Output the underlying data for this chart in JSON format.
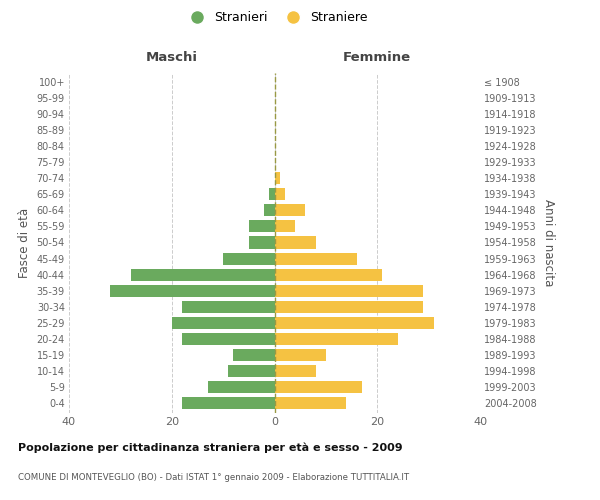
{
  "age_groups": [
    "0-4",
    "5-9",
    "10-14",
    "15-19",
    "20-24",
    "25-29",
    "30-34",
    "35-39",
    "40-44",
    "45-49",
    "50-54",
    "55-59",
    "60-64",
    "65-69",
    "70-74",
    "75-79",
    "80-84",
    "85-89",
    "90-94",
    "95-99",
    "100+"
  ],
  "birth_years": [
    "2004-2008",
    "1999-2003",
    "1994-1998",
    "1989-1993",
    "1984-1988",
    "1979-1983",
    "1974-1978",
    "1969-1973",
    "1964-1968",
    "1959-1963",
    "1954-1958",
    "1949-1953",
    "1944-1948",
    "1939-1943",
    "1934-1938",
    "1929-1933",
    "1924-1928",
    "1919-1923",
    "1914-1918",
    "1909-1913",
    "≤ 1908"
  ],
  "maschi": [
    18,
    13,
    9,
    8,
    18,
    20,
    18,
    32,
    28,
    10,
    5,
    5,
    2,
    1,
    0,
    0,
    0,
    0,
    0,
    0,
    0
  ],
  "femmine": [
    14,
    17,
    8,
    10,
    24,
    31,
    29,
    29,
    21,
    16,
    8,
    4,
    6,
    2,
    1,
    0,
    0,
    0,
    0,
    0,
    0
  ],
  "male_color": "#6aaa5e",
  "female_color": "#f5c242",
  "center_line_color": "#999944",
  "grid_color": "#cccccc",
  "title": "Popolazione per cittadinanza straniera per età e sesso - 2009",
  "subtitle": "COMUNE DI MONTEVEGLIO (BO) - Dati ISTAT 1° gennaio 2009 - Elaborazione TUTTITALIA.IT",
  "ylabel_left": "Fasce di età",
  "ylabel_right": "Anni di nascita",
  "xlabel_left": "Maschi",
  "xlabel_right": "Femmine",
  "legend_male": "Stranieri",
  "legend_female": "Straniere",
  "xlim": 40,
  "bar_height": 0.75,
  "background_color": "#ffffff"
}
